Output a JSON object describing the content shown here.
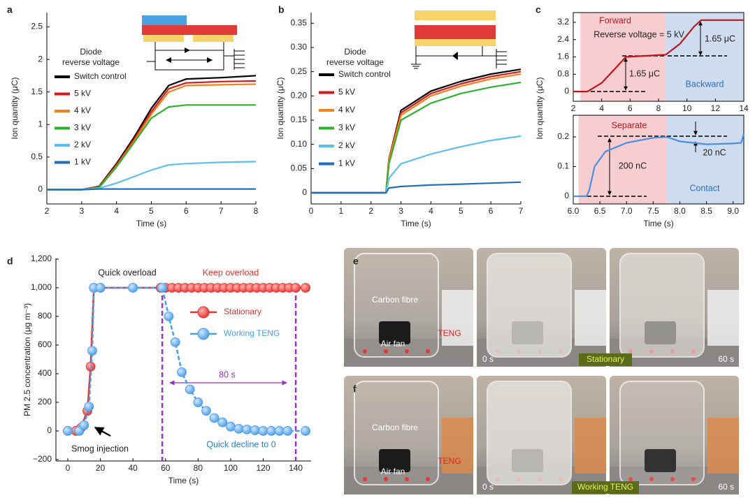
{
  "chart_data": [
    {
      "type": "line",
      "panel": "a",
      "xlabel": "Time (s)",
      "ylabel": "Ion quantity (μC)",
      "xlim": [
        2,
        8
      ],
      "xticks": [
        2,
        3,
        4,
        5,
        6,
        7,
        8
      ],
      "ylim": [
        -0.22,
        2.72
      ],
      "yticks": [
        0,
        0.5,
        1,
        1.5,
        2,
        2.5
      ],
      "legend_title": [
        "Diode",
        "reverse voltage"
      ],
      "x": [
        2,
        3,
        3.5,
        4,
        4.5,
        5,
        5.5,
        6,
        7,
        8
      ],
      "series": [
        {
          "name": "Switch control",
          "color": "#000000",
          "values": [
            0,
            0,
            0.05,
            0.4,
            0.8,
            1.25,
            1.6,
            1.7,
            1.72,
            1.75
          ]
        },
        {
          "name": "5 kV",
          "color": "#d7191c",
          "values": [
            0,
            0,
            0.04,
            0.38,
            0.77,
            1.2,
            1.55,
            1.64,
            1.66,
            1.67
          ]
        },
        {
          "name": "4 kV",
          "color": "#f5821f",
          "values": [
            0,
            0,
            0.04,
            0.36,
            0.74,
            1.16,
            1.5,
            1.6,
            1.61,
            1.62
          ]
        },
        {
          "name": "3 kV",
          "color": "#2cb22c",
          "values": [
            0,
            0,
            0.03,
            0.35,
            0.72,
            1.1,
            1.27,
            1.3,
            1.3,
            1.3
          ]
        },
        {
          "name": "2 kV",
          "color": "#5bc0f0",
          "values": [
            0,
            0,
            0.02,
            0.1,
            0.2,
            0.3,
            0.38,
            0.4,
            0.42,
            0.43
          ]
        },
        {
          "name": "1 kV",
          "color": "#1f6fc0",
          "values": [
            0,
            0,
            0.01,
            0.01,
            0.01,
            0.01,
            0.01,
            0.01,
            0.01,
            0.01
          ]
        }
      ]
    },
    {
      "type": "line",
      "panel": "b",
      "xlabel": "Time (s)",
      "ylabel": "Ion quantity (μC)",
      "xlim": [
        0,
        7
      ],
      "xticks": [
        0,
        1,
        2,
        3,
        4,
        5,
        6,
        7
      ],
      "ylim": [
        -0.023,
        0.372
      ],
      "yticks": [
        0,
        0.05,
        {
          "value": 0.1,
          "label": "0.10"
        },
        0.15,
        {
          "value": 0.2,
          "label": "0.20"
        },
        0.25,
        {
          "value": 0.3,
          "label": "0.30"
        },
        0.35
      ],
      "legend_title": [
        "Diode",
        "reverse voltage"
      ],
      "x": [
        0,
        1,
        2,
        2.5,
        2.6,
        3,
        4,
        5,
        6,
        7
      ],
      "series": [
        {
          "name": "Switch control",
          "color": "#000000",
          "values": [
            0,
            0,
            0,
            0,
            0.07,
            0.17,
            0.21,
            0.23,
            0.245,
            0.255
          ]
        },
        {
          "name": "5 kV",
          "color": "#d7191c",
          "values": [
            0,
            0,
            0,
            0,
            0.07,
            0.165,
            0.205,
            0.225,
            0.24,
            0.25
          ]
        },
        {
          "name": "4 kV",
          "color": "#f5821f",
          "values": [
            0,
            0,
            0,
            0,
            0.068,
            0.16,
            0.2,
            0.22,
            0.235,
            0.245
          ]
        },
        {
          "name": "3 kV",
          "color": "#2cb22c",
          "values": [
            0,
            0,
            0,
            0,
            0.06,
            0.15,
            0.185,
            0.205,
            0.218,
            0.228
          ]
        },
        {
          "name": "2 kV",
          "color": "#5bc0f0",
          "values": [
            0,
            0,
            0,
            0,
            0.03,
            0.06,
            0.08,
            0.095,
            0.108,
            0.117
          ]
        },
        {
          "name": "1 kV",
          "color": "#1f6fc0",
          "values": [
            0,
            0,
            0,
            0,
            0.01,
            0.013,
            0.016,
            0.018,
            0.02,
            0.022
          ]
        }
      ]
    },
    {
      "type": "line",
      "panel": "c",
      "ylabel": "Ion quantity (μC)",
      "xlim": [
        2,
        14
      ],
      "xticks": [
        2,
        4,
        6,
        8,
        10,
        12,
        14
      ],
      "ylim": [
        -0.45,
        3.65
      ],
      "yticks": [
        0,
        0.8,
        1.6,
        2.4,
        3.2
      ],
      "spans": [
        {
          "from": 2.5,
          "to": 8.5,
          "color": "#f8cdd0"
        },
        {
          "from": 8.5,
          "to": 14,
          "color": "#cfdbef"
        }
      ],
      "annotations": [
        "Forward",
        "Reverse voltage = 5 kV",
        "1.65 μC",
        "1.65 μC",
        "Backward"
      ],
      "x": [
        2,
        3,
        4,
        5,
        5.7,
        7,
        8.5,
        9.5,
        10.5,
        11,
        12,
        14
      ],
      "series": [
        {
          "color": "#c0151b",
          "values": [
            0,
            0,
            0.4,
            1.1,
            1.6,
            1.65,
            1.7,
            2.2,
            3.0,
            3.3,
            3.3,
            3.3
          ]
        }
      ]
    },
    {
      "type": "line",
      "xlabel": "Time (s)",
      "xlim": [
        6,
        9.2
      ],
      "xticks": [
        {
          "value": 6,
          "label": "6.0"
        },
        6.5,
        {
          "value": 7,
          "label": "7.0"
        },
        7.5,
        {
          "value": 8,
          "label": "8.0"
        },
        8.5,
        {
          "value": 9,
          "label": "9.0"
        }
      ],
      "ylim": [
        -0.026,
        0.273
      ],
      "yticks": [
        0,
        0.1,
        0.2
      ],
      "spans": [
        {
          "from": 6.1,
          "to": 7.75,
          "color": "#f8cdd0"
        },
        {
          "from": 7.75,
          "to": 9.2,
          "color": "#cfdbef"
        }
      ],
      "annotations": [
        "Separate",
        "200 nC",
        "20 nC",
        "Contact"
      ],
      "x": [
        6,
        6.25,
        6.3,
        6.4,
        6.6,
        7,
        7.5,
        7.75,
        8,
        8.5,
        9,
        9.15,
        9.2
      ],
      "series": [
        {
          "color": "#4a90e2",
          "values": [
            0,
            0,
            0.02,
            0.1,
            0.15,
            0.18,
            0.197,
            0.2,
            0.185,
            0.175,
            0.178,
            0.18,
            0.21
          ]
        }
      ]
    },
    {
      "type": "scatter",
      "panel": "d",
      "xlabel": "Time (s)",
      "ylabel": "PM 2.5 concentration (μg m⁻³)",
      "xlim": [
        -7.3,
        149.4
      ],
      "xticks": [
        0,
        20,
        40,
        60,
        80,
        100,
        120,
        140
      ],
      "ylim": [
        -210,
        1205
      ],
      "yticks": [
        {
          "value": -200,
          "label": "−200"
        },
        0,
        200,
        400,
        600,
        800,
        {
          "value": 1000,
          "label": "1,000"
        },
        {
          "value": 1200,
          "label": "1,200"
        }
      ],
      "vlines": [
        58,
        140
      ],
      "vline_color": "#9b30c8",
      "annotations": [
        "Quick overload",
        "Keep overload",
        "80 s",
        "Smog injection",
        "Quick decline to 0"
      ],
      "series": [
        {
          "name": "Stationary",
          "color": "#e8312e",
          "x": [
            0,
            5,
            8,
            12,
            14,
            16,
            20,
            40,
            57,
            60,
            64,
            68,
            72,
            76,
            80,
            84,
            88,
            92,
            96,
            100,
            104,
            108,
            112,
            116,
            120,
            124,
            128,
            132,
            136,
            140,
            146
          ],
          "values": [
            0,
            0,
            20,
            140,
            450,
            1000,
            1000,
            1000,
            1000,
            1000,
            1000,
            1000,
            1000,
            1000,
            1000,
            1000,
            1000,
            1000,
            1000,
            1000,
            1000,
            1000,
            1000,
            1000,
            1000,
            1000,
            1000,
            1000,
            1000,
            1000,
            1000
          ]
        },
        {
          "name": "Working TENG",
          "color": "#4a9de8",
          "x": [
            0,
            7,
            10,
            13,
            15,
            16,
            20,
            40,
            58,
            62,
            66,
            70,
            75,
            80,
            85,
            90,
            95,
            100,
            105,
            110,
            115,
            120,
            125,
            130,
            135,
            146
          ],
          "values": [
            0,
            0,
            40,
            170,
            560,
            1000,
            1000,
            1000,
            1000,
            800,
            620,
            410,
            290,
            200,
            140,
            90,
            60,
            30,
            15,
            10,
            5,
            0,
            0,
            0,
            0,
            0
          ]
        }
      ]
    }
  ],
  "photos": [
    {
      "panel": "e",
      "labels": [
        "Carbon fibre",
        "Air fan",
        "TENG",
        "0 s",
        "60 s"
      ],
      "caption": "Stationary"
    },
    {
      "panel": "f",
      "labels": [
        "Carbon fibre",
        "Air fan",
        "TENG",
        "0 s",
        "60 s"
      ],
      "caption": "Working TENG"
    }
  ]
}
